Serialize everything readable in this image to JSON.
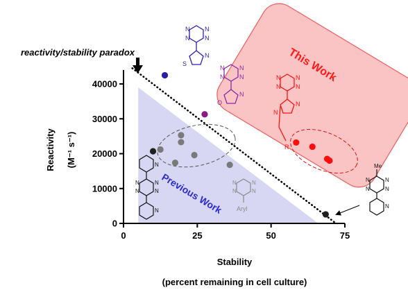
{
  "chart_data": {
    "type": "scatter",
    "xlabel": "Stability",
    "xlabel_sub": "(percent remaining in cell culture)",
    "ylabel": "Reactivity",
    "ylabel_unit": "(M⁻¹ s⁻¹)",
    "xlim": [
      0,
      75
    ],
    "ylim": [
      0,
      45000
    ],
    "x_ticks": [
      0,
      25,
      50,
      75
    ],
    "y_ticks": [
      0,
      10000,
      20000,
      30000,
      40000
    ],
    "x_tick_labels": [
      "0",
      "25",
      "50",
      "75"
    ],
    "y_tick_labels": [
      "0",
      "10000",
      "20000",
      "30000",
      "40000"
    ],
    "annotations": {
      "paradox": "reactivity/stability paradox",
      "this_work": "This Work",
      "previous_work": "Previous Work",
      "aryl_label": "Aryl",
      "r_label": "R",
      "me_label": "Me"
    },
    "series": [
      {
        "color": "#202020",
        "points": [
          {
            "x": 10,
            "y": 20700
          },
          {
            "x": 68.5,
            "y": 2600
          }
        ]
      },
      {
        "color": "#7a7a7a",
        "points": [
          {
            "x": 12.5,
            "y": 21200
          },
          {
            "x": 17.5,
            "y": 17400
          },
          {
            "x": 19.5,
            "y": 25300
          },
          {
            "x": 19.5,
            "y": 23300
          },
          {
            "x": 24,
            "y": 19600
          },
          {
            "x": 36,
            "y": 16800
          }
        ]
      },
      {
        "color": "#2d1ea8",
        "points": [
          {
            "x": 14,
            "y": 42500
          }
        ]
      },
      {
        "color": "#8a1a86",
        "points": [
          {
            "x": 27.5,
            "y": 31300
          }
        ]
      },
      {
        "color": "#ff0d0d",
        "points": [
          {
            "x": 58.5,
            "y": 23200
          },
          {
            "x": 64,
            "y": 22000
          },
          {
            "x": 69,
            "y": 18500
          },
          {
            "x": 69.8,
            "y": 18000
          }
        ]
      }
    ]
  }
}
